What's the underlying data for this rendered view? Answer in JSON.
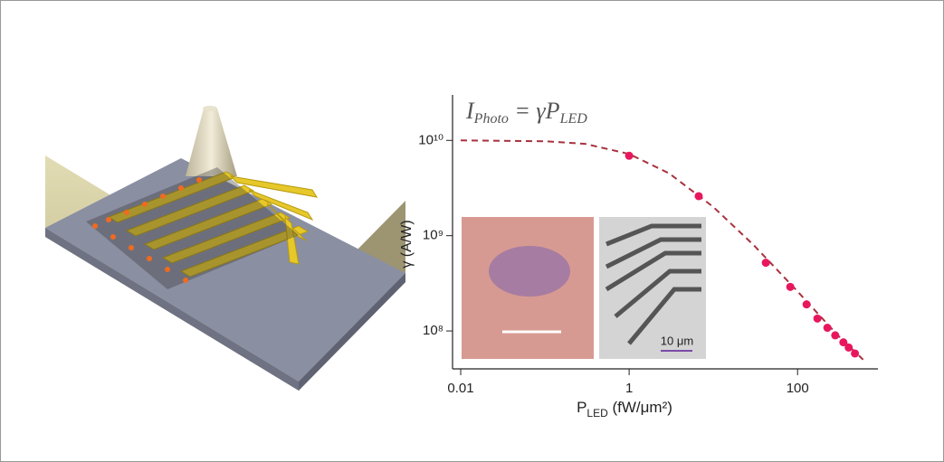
{
  "chart_data": {
    "type": "scatter",
    "equation": {
      "lhs": "I",
      "lhs_sub": "Photo",
      "mid": " = γP",
      "rhs_sub": "LED"
    },
    "x_label": {
      "main": "P",
      "sub": "LED",
      "rest": " (fW/μm²)"
    },
    "y_label": "γ (A/W)",
    "inset_scale_label": "10 μm",
    "xscale": "log",
    "yscale": "log",
    "xlim": [
      0.008,
      900
    ],
    "ylim": [
      40000000,
      30000000000
    ],
    "xticks": [
      0.01,
      1,
      100
    ],
    "yticks": [
      {
        "value": 100000000,
        "label": "10⁸"
      },
      {
        "value": 1000000000,
        "label": "10⁹"
      },
      {
        "value": 10000000000,
        "label": "10¹⁰"
      }
    ],
    "series": [
      {
        "color": "#e8175d",
        "x": [
          1,
          6.7,
          42,
          82,
          128,
          172,
          226,
          280,
          350,
          405,
          480
        ],
        "values": [
          6900000000,
          2600000000,
          520000000,
          290000000,
          190000000,
          135000000,
          108000000,
          90000000,
          76000000,
          67000000,
          58000000
        ]
      },
      {
        "color": "#a8323e",
        "style": "dashed",
        "x": [
          0.01,
          0.1,
          0.3,
          1,
          3,
          10,
          30,
          100,
          300,
          600
        ],
        "values": [
          10000000000,
          9800000000,
          9200000000,
          7200000000,
          4500000000,
          2000000000,
          800000000,
          260000000,
          90000000,
          50000000
        ]
      }
    ]
  }
}
